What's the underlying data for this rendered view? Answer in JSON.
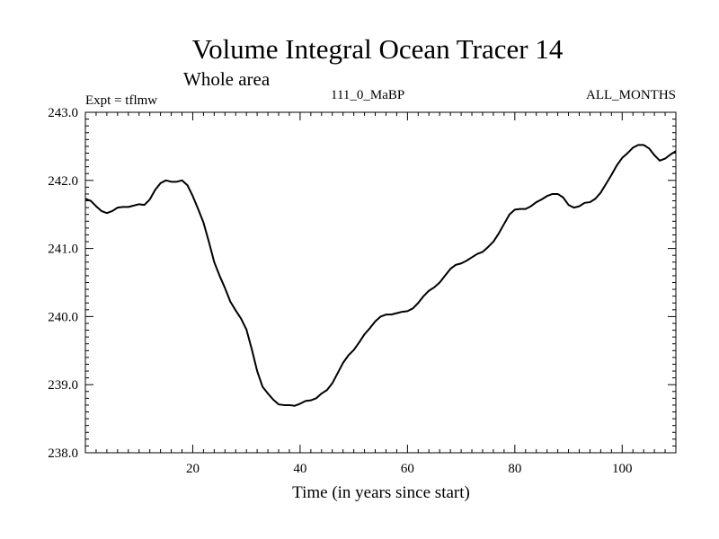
{
  "chart_data": {
    "type": "line",
    "title": "Volume Integral Ocean Tracer 14",
    "subtitle": "Whole area",
    "left_label": "Expt = tflmw",
    "center_label": "111_0_MaBP",
    "right_label": "ALL_MONTHS",
    "xlabel": "Time (in years since start)",
    "ylabel": "",
    "xlim": [
      0,
      110
    ],
    "ylim": [
      238.0,
      243.0
    ],
    "x_ticks": [
      20,
      40,
      60,
      80,
      100
    ],
    "y_ticks": [
      "238.0",
      "239.0",
      "240.0",
      "241.0",
      "242.0",
      "243.0"
    ],
    "grid": false,
    "series": [
      {
        "name": "",
        "color": "#000000",
        "points": [
          [
            0,
            241.73
          ],
          [
            1,
            241.7
          ],
          [
            2,
            241.62
          ],
          [
            3,
            241.55
          ],
          [
            4,
            241.52
          ],
          [
            5,
            241.55
          ],
          [
            6,
            241.6
          ],
          [
            7,
            241.61
          ],
          [
            8,
            241.61
          ],
          [
            9,
            241.63
          ],
          [
            10,
            241.65
          ],
          [
            11,
            241.64
          ],
          [
            12,
            241.72
          ],
          [
            13,
            241.86
          ],
          [
            14,
            241.96
          ],
          [
            15,
            242.0
          ],
          [
            16,
            241.98
          ],
          [
            17,
            241.98
          ],
          [
            18,
            242.0
          ],
          [
            19,
            241.93
          ],
          [
            20,
            241.77
          ],
          [
            21,
            241.58
          ],
          [
            22,
            241.38
          ],
          [
            23,
            241.1
          ],
          [
            24,
            240.8
          ],
          [
            25,
            240.6
          ],
          [
            26,
            240.42
          ],
          [
            27,
            240.22
          ],
          [
            28,
            240.09
          ],
          [
            29,
            239.97
          ],
          [
            30,
            239.81
          ],
          [
            31,
            239.52
          ],
          [
            32,
            239.2
          ],
          [
            33,
            238.97
          ],
          [
            34,
            238.87
          ],
          [
            35,
            238.78
          ],
          [
            36,
            238.71
          ],
          [
            37,
            238.7
          ],
          [
            38,
            238.7
          ],
          [
            39,
            238.69
          ],
          [
            40,
            238.72
          ],
          [
            41,
            238.76
          ],
          [
            42,
            238.77
          ],
          [
            43,
            238.8
          ],
          [
            44,
            238.87
          ],
          [
            45,
            238.92
          ],
          [
            46,
            239.02
          ],
          [
            47,
            239.17
          ],
          [
            48,
            239.32
          ],
          [
            49,
            239.43
          ],
          [
            50,
            239.51
          ],
          [
            51,
            239.62
          ],
          [
            52,
            239.74
          ],
          [
            53,
            239.83
          ],
          [
            54,
            239.93
          ],
          [
            55,
            240.0
          ],
          [
            56,
            240.03
          ],
          [
            57,
            240.03
          ],
          [
            58,
            240.05
          ],
          [
            59,
            240.07
          ],
          [
            60,
            240.08
          ],
          [
            61,
            240.12
          ],
          [
            62,
            240.2
          ],
          [
            63,
            240.3
          ],
          [
            64,
            240.38
          ],
          [
            65,
            240.43
          ],
          [
            66,
            240.5
          ],
          [
            67,
            240.6
          ],
          [
            68,
            240.7
          ],
          [
            69,
            240.76
          ],
          [
            70,
            240.78
          ],
          [
            71,
            240.82
          ],
          [
            72,
            240.87
          ],
          [
            73,
            240.92
          ],
          [
            74,
            240.95
          ],
          [
            75,
            241.02
          ],
          [
            76,
            241.1
          ],
          [
            77,
            241.22
          ],
          [
            78,
            241.36
          ],
          [
            79,
            241.5
          ],
          [
            80,
            241.57
          ],
          [
            81,
            241.58
          ],
          [
            82,
            241.58
          ],
          [
            83,
            241.62
          ],
          [
            84,
            241.68
          ],
          [
            85,
            241.72
          ],
          [
            86,
            241.77
          ],
          [
            87,
            241.8
          ],
          [
            88,
            241.8
          ],
          [
            89,
            241.75
          ],
          [
            90,
            241.64
          ],
          [
            91,
            241.6
          ],
          [
            92,
            241.62
          ],
          [
            93,
            241.67
          ],
          [
            94,
            241.68
          ],
          [
            95,
            241.73
          ],
          [
            96,
            241.82
          ],
          [
            97,
            241.95
          ],
          [
            98,
            242.08
          ],
          [
            99,
            242.22
          ],
          [
            100,
            242.33
          ],
          [
            101,
            242.4
          ],
          [
            102,
            242.48
          ],
          [
            103,
            242.52
          ],
          [
            104,
            242.52
          ],
          [
            105,
            242.47
          ],
          [
            106,
            242.37
          ],
          [
            107,
            242.29
          ],
          [
            108,
            242.32
          ],
          [
            109,
            242.38
          ],
          [
            110,
            242.43
          ]
        ]
      }
    ]
  }
}
